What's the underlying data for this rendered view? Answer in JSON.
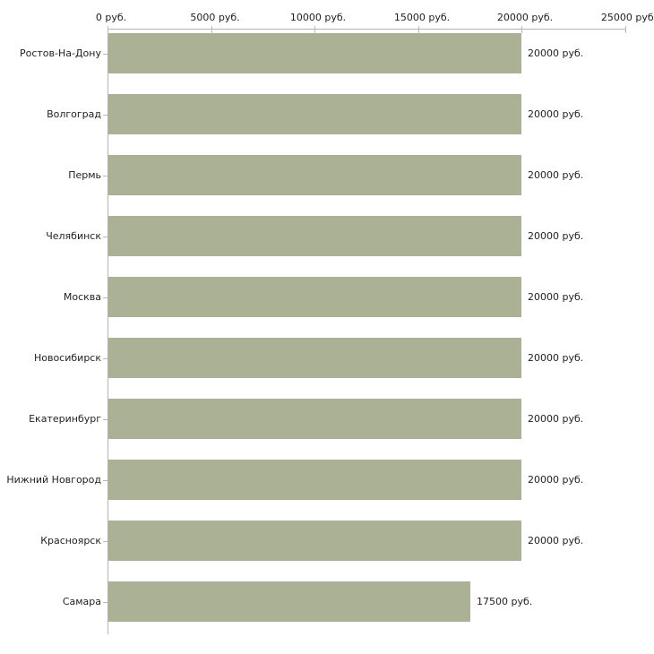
{
  "chart_data": {
    "type": "bar",
    "orientation": "horizontal",
    "title": "",
    "categories": [
      "Ростов-На-Дону",
      "Волгоград",
      "Пермь",
      "Челябинск",
      "Москва",
      "Новосибирск",
      "Екатеринбург",
      "Нижний Новгород",
      "Красноярск",
      "Самара"
    ],
    "values": [
      20000,
      20000,
      20000,
      20000,
      20000,
      20000,
      20000,
      20000,
      20000,
      17500
    ],
    "value_labels": [
      "20000 руб.",
      "20000 руб.",
      "20000 руб.",
      "20000 руб.",
      "20000 руб.",
      "20000 руб.",
      "20000 руб.",
      "20000 руб.",
      "20000 руб.",
      "17500 руб."
    ],
    "x_axis": {
      "position": "top",
      "min": 0,
      "max": 25000,
      "ticks": [
        0,
        5000,
        10000,
        15000,
        20000,
        25000
      ],
      "tick_labels": [
        "0 руб.",
        "5000 руб.",
        "10000 руб.",
        "15000 руб.",
        "20000 руб.",
        "25000 руб."
      ]
    },
    "unit": "руб.",
    "grid": false,
    "legend_position": "none",
    "colors": {
      "bar": "#abb194",
      "axis_line": "#b3b3b3",
      "tick": "#b8bd9a",
      "text": "#1f1f1f",
      "background": "#ffffff"
    }
  }
}
